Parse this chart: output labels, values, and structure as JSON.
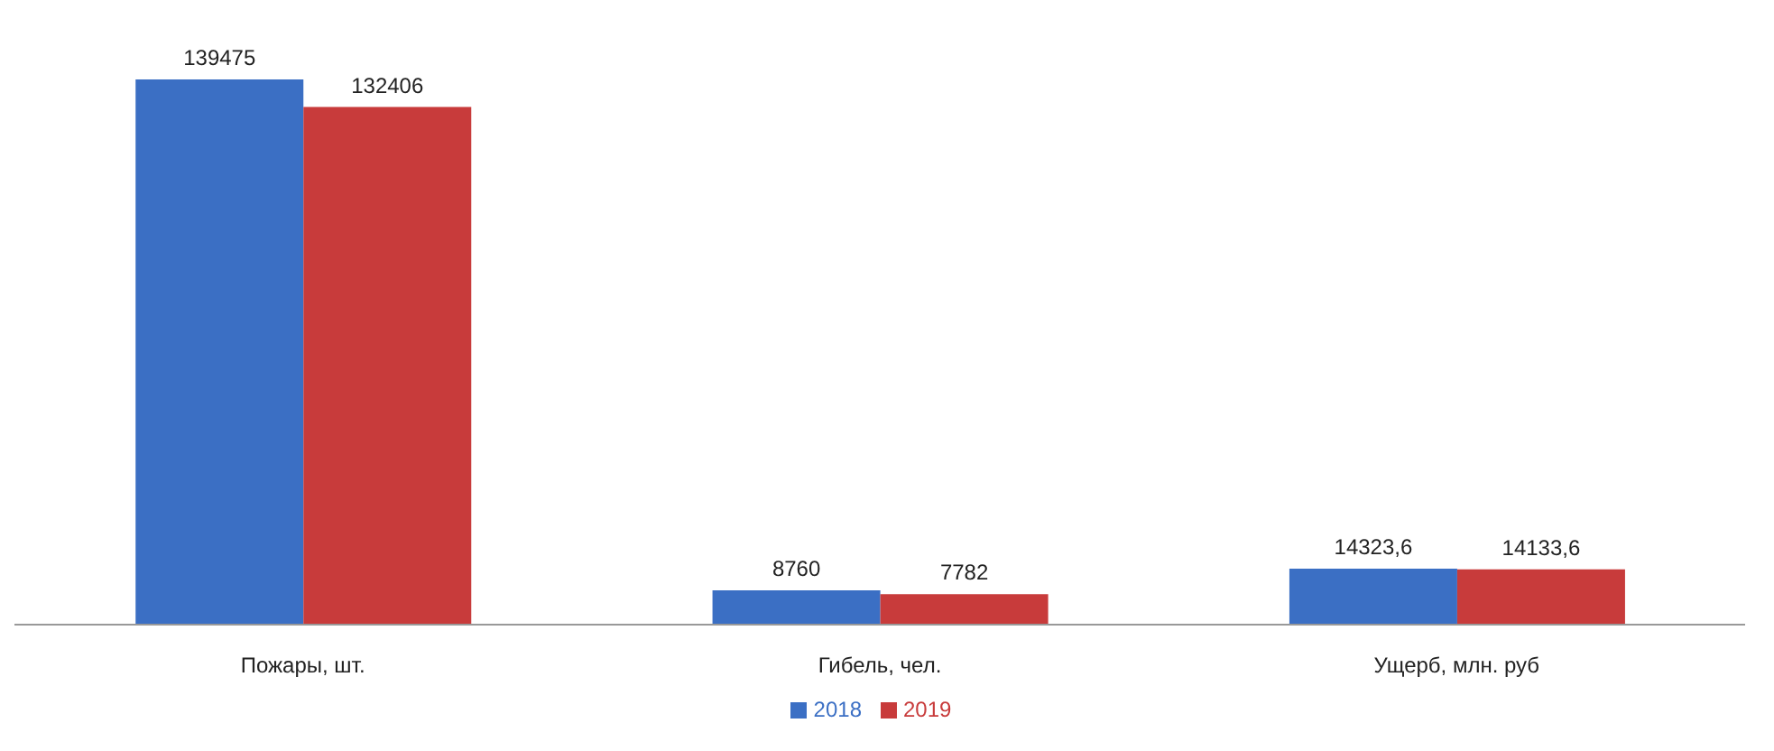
{
  "chart_data": {
    "type": "bar",
    "categories": [
      "Пожары, шт.",
      "Гибель, чел.",
      "Ущерб, млн. руб"
    ],
    "series": [
      {
        "name": "2018",
        "color": "#3b6fc4",
        "values": [
          139475,
          8760,
          14323.6
        ],
        "value_labels": [
          "139475",
          "8760",
          "14323,6"
        ]
      },
      {
        "name": "2019",
        "color": "#c83b3b",
        "values": [
          132406,
          7782,
          14133.6
        ],
        "value_labels": [
          "132406",
          "7782",
          "14133,6"
        ]
      }
    ],
    "legend": "bottom",
    "grid": false
  }
}
